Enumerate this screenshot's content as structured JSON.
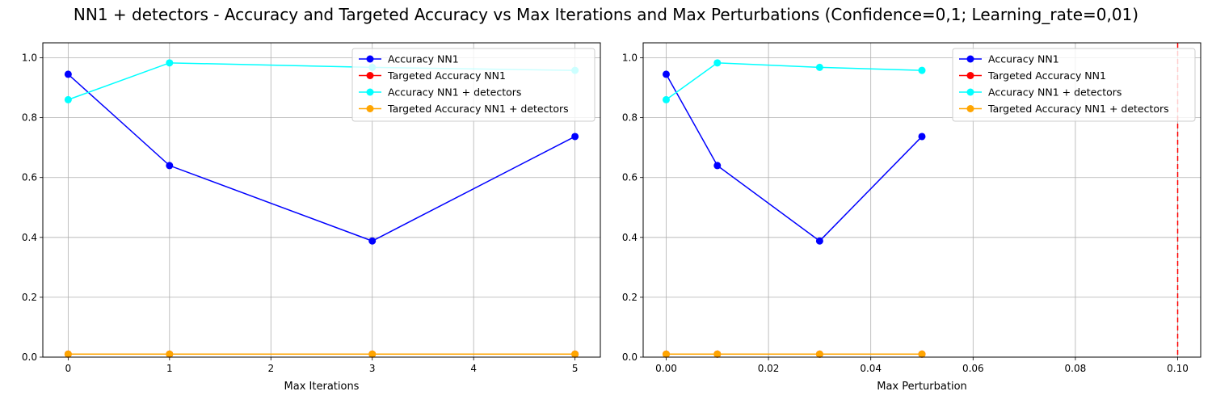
{
  "figure_title": "NN1 + detectors - Accuracy and Targeted Accuracy vs Max Iterations and Max Perturbations (Confidence=0,1; Learning_rate=0,01)",
  "colors": {
    "accuracy_nn1": "#0000ff",
    "targeted_accuracy_nn1": "#ff0000",
    "accuracy_nn1_detectors": "#00ffff",
    "targeted_accuracy_nn1_detectors": "#ffa500",
    "grid": "#b0b0b0",
    "reference_line": "#ff0000"
  },
  "chart_data": [
    {
      "type": "line",
      "title": "",
      "xlabel": "Max Iterations",
      "ylabel": "",
      "xlim": [
        -0.25,
        5.25
      ],
      "ylim": [
        0,
        1.05
      ],
      "xticks": [
        0,
        1,
        2,
        3,
        4,
        5
      ],
      "xtick_labels": [
        "0",
        "1",
        "2",
        "3",
        "4",
        "5"
      ],
      "yticks": [
        0,
        0.2,
        0.4,
        0.6,
        0.8,
        1.0
      ],
      "ytick_labels": [
        "0.0",
        "0.2",
        "0.4",
        "0.6",
        "0.8",
        "1.0"
      ],
      "grid": true,
      "legend": "top-right",
      "x": [
        0,
        1,
        3,
        5
      ],
      "series": [
        {
          "name": "Accuracy NN1",
          "color": "#0000ff",
          "values": [
            0.945,
            0.64,
            0.388,
            0.737
          ]
        },
        {
          "name": "Targeted Accuracy NN1",
          "color": "#ff0000",
          "values": [
            0.01,
            0.01,
            0.01,
            0.01
          ]
        },
        {
          "name": "Accuracy NN1 + detectors",
          "color": "#00ffff",
          "values": [
            0.86,
            0.983,
            0.968,
            0.958
          ]
        },
        {
          "name": "Targeted Accuracy NN1 + detectors",
          "color": "#ffa500",
          "values": [
            0.01,
            0.01,
            0.01,
            0.01
          ]
        }
      ]
    },
    {
      "type": "line",
      "title": "",
      "xlabel": "Max Perturbation",
      "ylabel": "",
      "xlim": [
        -0.0045,
        0.1045
      ],
      "ylim": [
        0,
        1.05
      ],
      "xticks": [
        0,
        0.02,
        0.04,
        0.06,
        0.08,
        0.1
      ],
      "xtick_labels": [
        "0.00",
        "0.02",
        "0.04",
        "0.06",
        "0.08",
        "0.10"
      ],
      "yticks": [
        0,
        0.2,
        0.4,
        0.6,
        0.8,
        1.0
      ],
      "ytick_labels": [
        "0.0",
        "0.2",
        "0.4",
        "0.6",
        "0.8",
        "1.0"
      ],
      "grid": true,
      "legend": "top-right",
      "vertical_reference_line": {
        "x": 0.1,
        "style": "dashed",
        "color": "#ff0000"
      },
      "x": [
        0,
        0.01,
        0.03,
        0.05
      ],
      "series": [
        {
          "name": "Accuracy NN1",
          "color": "#0000ff",
          "values": [
            0.945,
            0.64,
            0.388,
            0.737
          ]
        },
        {
          "name": "Targeted Accuracy NN1",
          "color": "#ff0000",
          "values": [
            0.01,
            0.01,
            0.01,
            0.01
          ]
        },
        {
          "name": "Accuracy NN1 + detectors",
          "color": "#00ffff",
          "values": [
            0.86,
            0.983,
            0.968,
            0.958
          ]
        },
        {
          "name": "Targeted Accuracy NN1 + detectors",
          "color": "#ffa500",
          "values": [
            0.01,
            0.01,
            0.01,
            0.01
          ]
        }
      ]
    }
  ]
}
